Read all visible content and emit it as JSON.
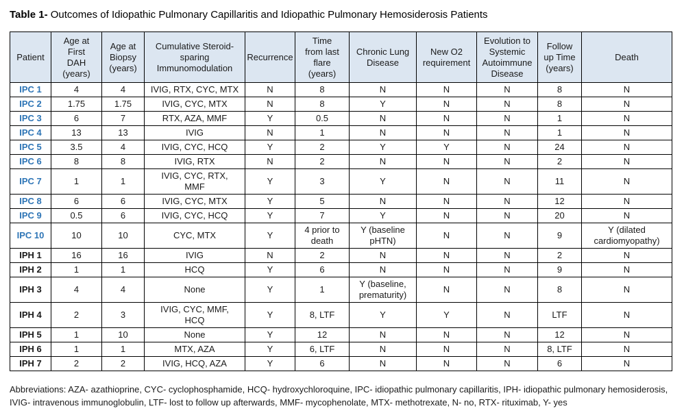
{
  "colors": {
    "header_bg": "#DCE6F1",
    "ipc_label": "#2E75B6",
    "border": "#000000",
    "text": "#1A1A1A"
  },
  "title": {
    "label": "Table 1-",
    "text": "Outcomes of Idiopathic Pulmonary Capillaritis and Idiopathic Pulmonary Hemosiderosis Patients"
  },
  "table": {
    "columns": [
      {
        "key": "patient",
        "label": "Patient",
        "width": 60
      },
      {
        "key": "age-first-dah",
        "label": "Age at\nFirst\nDAH\n(years)",
        "width": 74
      },
      {
        "key": "age-biopsy",
        "label": "Age at\nBiopsy\n(years)",
        "width": 62
      },
      {
        "key": "immunomodulation",
        "label": "Cumulative Steroid-\nsparing\nImmunomodulation",
        "width": 147
      },
      {
        "key": "recurrence",
        "label": "Recurrence",
        "width": 73
      },
      {
        "key": "time-from-last-flare",
        "label": "Time\nfrom last\nflare\n(years)",
        "width": 79
      },
      {
        "key": "chronic-lung-disease",
        "label": "Chronic Lung\nDisease",
        "width": 98
      },
      {
        "key": "new-o2-requirement",
        "label": "New O2\nrequirement",
        "width": 88
      },
      {
        "key": "evolution-autoimmune",
        "label": "Evolution to\nSystemic\nAutoimmune\nDisease",
        "width": 89
      },
      {
        "key": "follow-up-time",
        "label": "Follow\nup Time\n(years)",
        "width": 64
      },
      {
        "key": "death",
        "label": "Death",
        "width": 132
      }
    ],
    "rows": [
      {
        "patient": "IPC 1",
        "group": "ipc",
        "cells": [
          "4",
          "4",
          "IVIG, RTX, CYC, MTX",
          "N",
          "8",
          "N",
          "N",
          "N",
          "8",
          "N"
        ]
      },
      {
        "patient": "IPC 2",
        "group": "ipc",
        "cells": [
          "1.75",
          "1.75",
          "IVIG, CYC, MTX",
          "N",
          "8",
          "Y",
          "N",
          "N",
          "8",
          "N"
        ]
      },
      {
        "patient": "IPC 3",
        "group": "ipc",
        "cells": [
          "6",
          "7",
          "RTX, AZA, MMF",
          "Y",
          "0.5",
          "N",
          "N",
          "N",
          "1",
          "N"
        ]
      },
      {
        "patient": "IPC 4",
        "group": "ipc",
        "cells": [
          "13",
          "13",
          "IVIG",
          "N",
          "1",
          "N",
          "N",
          "N",
          "1",
          "N"
        ]
      },
      {
        "patient": "IPC 5",
        "group": "ipc",
        "cells": [
          "3.5",
          "4",
          "IVIG, CYC, HCQ",
          "Y",
          "2",
          "Y",
          "Y",
          "N",
          "24",
          "N"
        ]
      },
      {
        "patient": "IPC 6",
        "group": "ipc",
        "cells": [
          "8",
          "8",
          "IVIG, RTX",
          "N",
          "2",
          "N",
          "N",
          "N",
          "2",
          "N"
        ]
      },
      {
        "patient": "IPC 7",
        "group": "ipc",
        "cells": [
          "1",
          "1",
          "IVIG, CYC, RTX,\nMMF",
          "Y",
          "3",
          "Y",
          "N",
          "N",
          "11",
          "N"
        ]
      },
      {
        "patient": "IPC 8",
        "group": "ipc",
        "cells": [
          "6",
          "6",
          "IVIG, CYC, MTX",
          "Y",
          "5",
          "N",
          "N",
          "N",
          "12",
          "N"
        ]
      },
      {
        "patient": "IPC 9",
        "group": "ipc",
        "cells": [
          "0.5",
          "6",
          "IVIG, CYC, HCQ",
          "Y",
          "7",
          "Y",
          "N",
          "N",
          "20",
          "N"
        ]
      },
      {
        "patient": "IPC 10",
        "group": "ipc",
        "cells": [
          "10",
          "10",
          "CYC, MTX",
          "Y",
          "4 prior to\ndeath",
          "Y (baseline\npHTN)",
          "N",
          "N",
          "9",
          "Y (dilated\ncardiomyopathy)"
        ]
      },
      {
        "patient": "IPH 1",
        "group": "iph",
        "cells": [
          "16",
          "16",
          "IVIG",
          "N",
          "2",
          "N",
          "N",
          "N",
          "2",
          "N"
        ]
      },
      {
        "patient": "IPH 2",
        "group": "iph",
        "cells": [
          "1",
          "1",
          "HCQ",
          "Y",
          "6",
          "N",
          "N",
          "N",
          "9",
          "N"
        ]
      },
      {
        "patient": "IPH 3",
        "group": "iph",
        "cells": [
          "4",
          "4",
          "None",
          "Y",
          "1",
          "Y (baseline,\nprematurity)",
          "N",
          "N",
          "8",
          "N"
        ]
      },
      {
        "patient": "IPH 4",
        "group": "iph",
        "cells": [
          "2",
          "3",
          "IVIG, CYC, MMF,\nHCQ",
          "Y",
          "8, LTF",
          "Y",
          "Y",
          "N",
          "LTF",
          "N"
        ]
      },
      {
        "patient": "IPH 5",
        "group": "iph",
        "cells": [
          "1",
          "10",
          "None",
          "Y",
          "12",
          "N",
          "N",
          "N",
          "12",
          "N"
        ]
      },
      {
        "patient": "IPH 6",
        "group": "iph",
        "cells": [
          "1",
          "1",
          "MTX, AZA",
          "Y",
          "6, LTF",
          "N",
          "N",
          "N",
          "8, LTF",
          "N"
        ]
      },
      {
        "patient": "IPH 7",
        "group": "iph",
        "cells": [
          "2",
          "2",
          "IVIG, HCQ, AZA",
          "Y",
          "6",
          "N",
          "N",
          "N",
          "6",
          "N"
        ]
      }
    ]
  },
  "footnote": "Abbreviations: AZA- azathioprine, CYC- cyclophosphamide, HCQ- hydroxychloroquine, IPC- idiopathic pulmonary capillaritis, IPH- idiopathic pulmonary hemosiderosis, IVIG- intravenous immunoglobulin, LTF- lost to follow up afterwards, MMF- mycophenolate, MTX- methotrexate, N- no, RTX- rituximab, Y- yes"
}
